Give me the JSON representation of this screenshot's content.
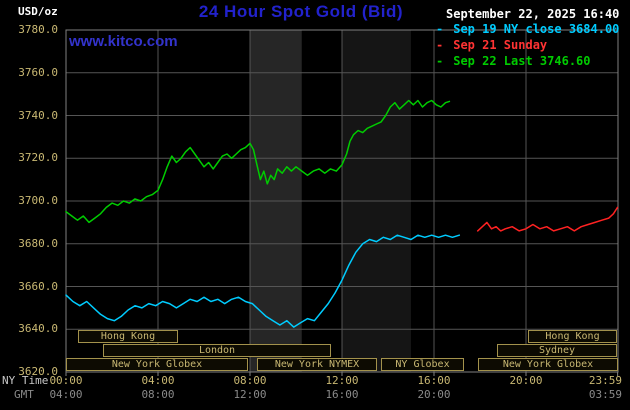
{
  "header": {
    "units_label": "USD/oz",
    "title": "24 Hour Spot Gold (Bid)",
    "datetime": "September 22, 2025 16:40",
    "watermark": "www.kitco.com"
  },
  "legend": {
    "items": [
      {
        "marker": "-",
        "label": "Sep 19 NY close 3684.00",
        "color": "#00CCFF"
      },
      {
        "marker": "-",
        "label": "Sep 21 Sunday",
        "color": "#FF3333"
      },
      {
        "marker": "-",
        "label": "Sep 22 Last 3746.60",
        "color": "#00CC00"
      }
    ]
  },
  "colors": {
    "background": "#000000",
    "title_blue": "#2222CC",
    "watermark_blue": "#3333CC",
    "text_white": "#FFFFFF",
    "axis_tan": "#C9B873",
    "gmt_gray": "#8A8A8A",
    "grid_gray": "#555555",
    "border_gray": "#808080",
    "session_border": "#A3924C"
  },
  "axes": {
    "ny_label": "NY Time",
    "gmt_label": "GMT",
    "y_ticks": [
      "3780.0",
      "3760.0",
      "3740.0",
      "3720.0",
      "3700.0",
      "3680.0",
      "3660.0",
      "3640.0",
      "3620.0"
    ],
    "x_ticks_ny": [
      {
        "hour": 0,
        "label": "00:00"
      },
      {
        "hour": 4,
        "label": "04:00"
      },
      {
        "hour": 8,
        "label": "08:00"
      },
      {
        "hour": 12,
        "label": "12:00"
      },
      {
        "hour": 16,
        "label": "16:00"
      },
      {
        "hour": 20,
        "label": "20:00"
      },
      {
        "hour": 23.983,
        "label": "23:59"
      }
    ],
    "x_ticks_gmt": [
      {
        "hour": 0,
        "label": "04:00"
      },
      {
        "hour": 4,
        "label": "08:00"
      },
      {
        "hour": 8,
        "label": "12:00"
      },
      {
        "hour": 12,
        "label": "16:00"
      },
      {
        "hour": 16,
        "label": "20:00"
      },
      {
        "hour": 23.983,
        "label": "03:59"
      }
    ]
  },
  "sessions": [
    {
      "label": "Hong Kong",
      "row": 0,
      "start": 0.5,
      "end": 4.85
    },
    {
      "label": "Hong Kong",
      "row": 0,
      "start": 20.1,
      "end": 23.98
    },
    {
      "label": "London",
      "row": 1,
      "start": 1.6,
      "end": 11.5
    },
    {
      "label": "Sydney",
      "row": 1,
      "start": 18.75,
      "end": 23.98
    },
    {
      "label": "New York Globex",
      "row": 2,
      "start": 0,
      "end": 7.9
    },
    {
      "label": "New York NYMEX",
      "row": 2,
      "start": 8.3,
      "end": 13.5
    },
    {
      "label": "NY Globex",
      "row": 2,
      "start": 13.7,
      "end": 17.3
    },
    {
      "label": "New York Globex",
      "row": 2,
      "start": 17.9,
      "end": 23.98
    }
  ],
  "chart_data": {
    "type": "line",
    "title": "24 Hour Spot Gold (Bid)",
    "xlabel": "NY Time (hours)",
    "ylabel": "USD/oz",
    "xlim": [
      0,
      24
    ],
    "ylim": [
      3620,
      3780
    ],
    "y_tick_step": 20,
    "x_tick_step_hours": 4,
    "grid": true,
    "legend_position": "top-right",
    "ny_close_value": 3684.0,
    "last_value": 3746.6,
    "shaded_bands": [
      {
        "start_hour": 8.0,
        "end_hour": 10.25,
        "color": "#262626"
      },
      {
        "start_hour": 12.0,
        "end_hour": 15.0,
        "color": "#151515"
      }
    ],
    "series": [
      {
        "name": "Sep 19 NY close 3684.00",
        "color": "#00CCFF",
        "points": [
          [
            0,
            3656
          ],
          [
            0.3,
            3653
          ],
          [
            0.6,
            3651
          ],
          [
            0.9,
            3653
          ],
          [
            1.2,
            3650
          ],
          [
            1.5,
            3647
          ],
          [
            1.8,
            3645
          ],
          [
            2.1,
            3644
          ],
          [
            2.4,
            3646
          ],
          [
            2.7,
            3649
          ],
          [
            3,
            3651
          ],
          [
            3.3,
            3650
          ],
          [
            3.6,
            3652
          ],
          [
            3.9,
            3651
          ],
          [
            4.2,
            3653
          ],
          [
            4.5,
            3652
          ],
          [
            4.8,
            3650
          ],
          [
            5.1,
            3652
          ],
          [
            5.4,
            3654
          ],
          [
            5.7,
            3653
          ],
          [
            6,
            3655
          ],
          [
            6.3,
            3653
          ],
          [
            6.6,
            3654
          ],
          [
            6.9,
            3652
          ],
          [
            7.2,
            3654
          ],
          [
            7.5,
            3655
          ],
          [
            7.8,
            3653
          ],
          [
            8.1,
            3652
          ],
          [
            8.4,
            3649
          ],
          [
            8.7,
            3646
          ],
          [
            9,
            3644
          ],
          [
            9.3,
            3642
          ],
          [
            9.6,
            3644
          ],
          [
            9.9,
            3641
          ],
          [
            10.2,
            3643
          ],
          [
            10.5,
            3645
          ],
          [
            10.8,
            3644
          ],
          [
            11.1,
            3648
          ],
          [
            11.4,
            3652
          ],
          [
            11.7,
            3657
          ],
          [
            12,
            3663
          ],
          [
            12.3,
            3670
          ],
          [
            12.6,
            3676
          ],
          [
            12.9,
            3680
          ],
          [
            13.2,
            3682
          ],
          [
            13.5,
            3681
          ],
          [
            13.8,
            3683
          ],
          [
            14.1,
            3682
          ],
          [
            14.4,
            3684
          ],
          [
            14.7,
            3683
          ],
          [
            15,
            3682
          ],
          [
            15.3,
            3684
          ],
          [
            15.6,
            3683
          ],
          [
            15.9,
            3684
          ],
          [
            16.2,
            3683
          ],
          [
            16.5,
            3684
          ],
          [
            16.8,
            3683
          ],
          [
            17.1,
            3684
          ]
        ]
      },
      {
        "name": "Sep 21 Sunday",
        "color": "#FF2222",
        "points": [
          [
            17.9,
            3686
          ],
          [
            18.1,
            3688
          ],
          [
            18.3,
            3690
          ],
          [
            18.5,
            3687
          ],
          [
            18.7,
            3688
          ],
          [
            18.9,
            3686
          ],
          [
            19.1,
            3687
          ],
          [
            19.4,
            3688
          ],
          [
            19.7,
            3686
          ],
          [
            20,
            3687
          ],
          [
            20.3,
            3689
          ],
          [
            20.6,
            3687
          ],
          [
            20.9,
            3688
          ],
          [
            21.2,
            3686
          ],
          [
            21.5,
            3687
          ],
          [
            21.8,
            3688
          ],
          [
            22.1,
            3686
          ],
          [
            22.4,
            3688
          ],
          [
            22.7,
            3689
          ],
          [
            23,
            3690
          ],
          [
            23.3,
            3691
          ],
          [
            23.6,
            3692
          ],
          [
            23.8,
            3694
          ],
          [
            23.98,
            3697
          ]
        ]
      },
      {
        "name": "Sep 22 Last 3746.60",
        "color": "#00CC00",
        "points": [
          [
            0,
            3695
          ],
          [
            0.25,
            3693
          ],
          [
            0.5,
            3691
          ],
          [
            0.75,
            3693
          ],
          [
            1,
            3690
          ],
          [
            1.25,
            3692
          ],
          [
            1.5,
            3694
          ],
          [
            1.75,
            3697
          ],
          [
            2,
            3699
          ],
          [
            2.25,
            3698
          ],
          [
            2.5,
            3700
          ],
          [
            2.75,
            3699
          ],
          [
            3,
            3701
          ],
          [
            3.25,
            3700
          ],
          [
            3.5,
            3702
          ],
          [
            3.75,
            3703
          ],
          [
            4,
            3705
          ],
          [
            4.2,
            3710
          ],
          [
            4.4,
            3716
          ],
          [
            4.6,
            3721
          ],
          [
            4.8,
            3718
          ],
          [
            5,
            3720
          ],
          [
            5.2,
            3723
          ],
          [
            5.4,
            3725
          ],
          [
            5.6,
            3722
          ],
          [
            5.8,
            3719
          ],
          [
            6,
            3716
          ],
          [
            6.2,
            3718
          ],
          [
            6.4,
            3715
          ],
          [
            6.6,
            3718
          ],
          [
            6.8,
            3721
          ],
          [
            7,
            3722
          ],
          [
            7.2,
            3720
          ],
          [
            7.4,
            3722
          ],
          [
            7.6,
            3724
          ],
          [
            7.8,
            3725
          ],
          [
            8,
            3727
          ],
          [
            8.15,
            3724
          ],
          [
            8.3,
            3717
          ],
          [
            8.45,
            3710
          ],
          [
            8.6,
            3714
          ],
          [
            8.75,
            3708
          ],
          [
            8.9,
            3712
          ],
          [
            9.05,
            3710
          ],
          [
            9.2,
            3715
          ],
          [
            9.4,
            3713
          ],
          [
            9.6,
            3716
          ],
          [
            9.8,
            3714
          ],
          [
            10,
            3716
          ],
          [
            10.25,
            3714
          ],
          [
            10.5,
            3712
          ],
          [
            10.75,
            3714
          ],
          [
            11,
            3715
          ],
          [
            11.25,
            3713
          ],
          [
            11.5,
            3715
          ],
          [
            11.75,
            3714
          ],
          [
            12,
            3717
          ],
          [
            12.2,
            3722
          ],
          [
            12.35,
            3728
          ],
          [
            12.5,
            3731
          ],
          [
            12.7,
            3733
          ],
          [
            12.9,
            3732
          ],
          [
            13.1,
            3734
          ],
          [
            13.3,
            3735
          ],
          [
            13.5,
            3736
          ],
          [
            13.7,
            3737
          ],
          [
            13.9,
            3740
          ],
          [
            14.1,
            3744
          ],
          [
            14.3,
            3746
          ],
          [
            14.5,
            3743
          ],
          [
            14.7,
            3745
          ],
          [
            14.9,
            3747
          ],
          [
            15.1,
            3745
          ],
          [
            15.3,
            3747
          ],
          [
            15.5,
            3744
          ],
          [
            15.7,
            3746
          ],
          [
            15.9,
            3747
          ],
          [
            16.1,
            3745
          ],
          [
            16.3,
            3744
          ],
          [
            16.5,
            3746
          ],
          [
            16.67,
            3746.6
          ]
        ]
      }
    ]
  }
}
